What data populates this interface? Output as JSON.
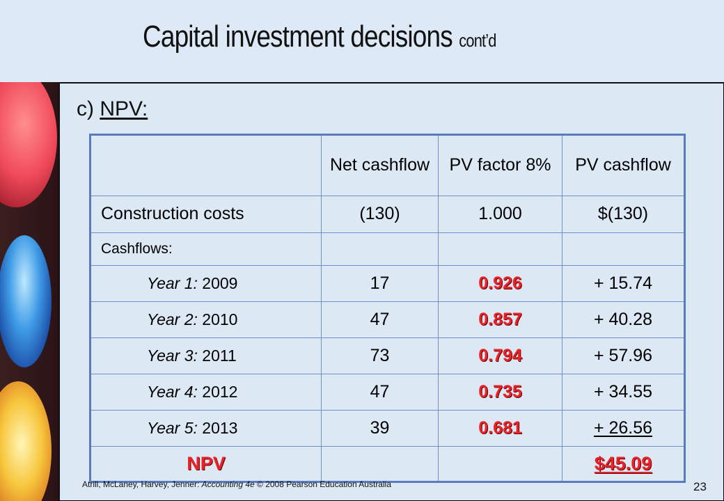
{
  "slide": {
    "title": "Capital investment decisions",
    "title_suffix": "cont’d",
    "subhead_prefix": "c)",
    "subhead_label": "NPV:",
    "page_number": "23",
    "footer_authors": "Atrill, McLaney, Harvey, Jenner: ",
    "footer_book": "Accounting 4e",
    "footer_rest": " © 2008 Pearson Education Australia"
  },
  "table": {
    "headers": {
      "col1": "",
      "col2": "Net cashflow",
      "col3": "PV factor 8%",
      "col4": "PV cashflow"
    },
    "construction": {
      "label": "Construction costs",
      "net": "(130)",
      "factor": "1.000",
      "pv": "$(130)"
    },
    "cashflows_label": "Cashflows:",
    "years": [
      {
        "label": "Year 1:",
        "year": "2009",
        "net": "17",
        "factor": "0.926",
        "pv": "+ 15.74"
      },
      {
        "label": "Year 2:",
        "year": "2010",
        "net": "47",
        "factor": "0.857",
        "pv": "+ 40.28"
      },
      {
        "label": "Year 3:",
        "year": "2011",
        "net": "73",
        "factor": "0.794",
        "pv": "+ 57.96"
      },
      {
        "label": "Year 4:",
        "year": "2012",
        "net": "47",
        "factor": "0.735",
        "pv": "+ 34.55"
      },
      {
        "label": "Year 5:",
        "year": "2013",
        "net": "39",
        "factor": "0.681",
        "pv": "+ 26.56"
      }
    ],
    "npv": {
      "label": "NPV",
      "value": "$45.09"
    }
  },
  "colors": {
    "accent_red": "#e8232a",
    "table_border": "#5a7bbd",
    "background": "#dce9f5"
  }
}
